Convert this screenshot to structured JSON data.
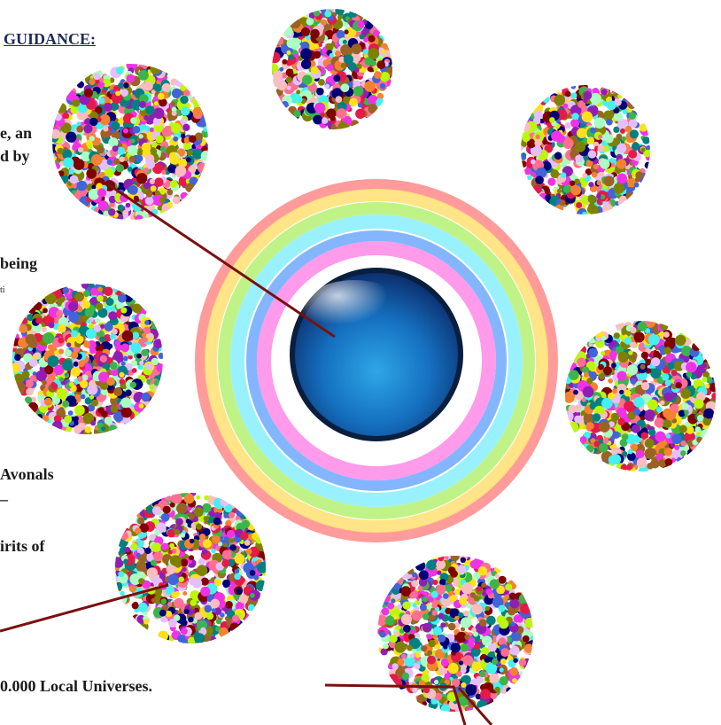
{
  "texts": {
    "heading": "GUIDANCE:",
    "line1": "e, an",
    "line2": "d by",
    "line3": "being",
    "line4": "ti",
    "line5": "Avonals",
    "line6": "–",
    "line7": "irits of",
    "line8": "0.000 Local Universes."
  },
  "colors": {
    "connector": "#7a1010",
    "heading": "#1f2a5a",
    "orb_dark": "#0b2f6e",
    "orb_light": "#2ea6e6",
    "rings": [
      "#ff8a8a",
      "#ffe27a",
      "#b9f27a",
      "#8ef0ff",
      "#6fa8ff",
      "#ff8ae6",
      "#ffffff"
    ]
  },
  "nodes": [
    {
      "kind": "dotted-sphere"
    },
    {
      "kind": "dotted-sphere"
    },
    {
      "kind": "dotted-sphere"
    },
    {
      "kind": "dotted-sphere"
    },
    {
      "kind": "dotted-sphere"
    },
    {
      "kind": "dotted-sphere"
    },
    {
      "kind": "dotted-sphere"
    }
  ]
}
